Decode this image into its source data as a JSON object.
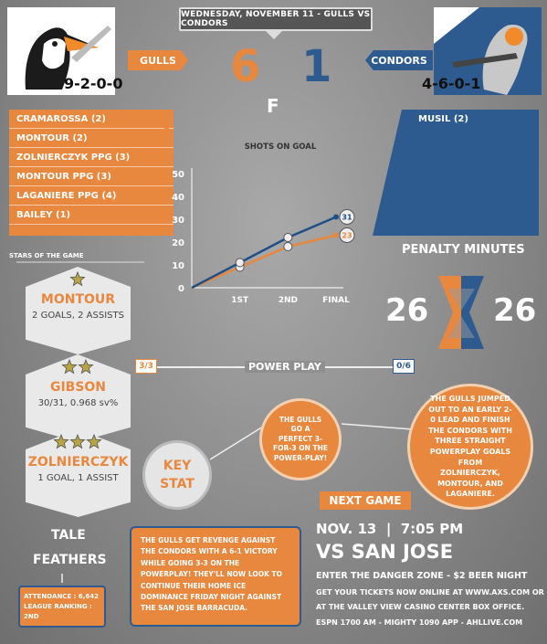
{
  "header": {
    "title": "WEDNESDAY, NOVEMBER 11 - GULLS VS CONDORS"
  },
  "gulls": {
    "name": "GULLS",
    "record": "9-2-0-0",
    "score": "6",
    "color": "#e8873e"
  },
  "condors": {
    "name": "CONDORS",
    "record": "4-6-0-1",
    "score": "1",
    "color": "#2e5b8f"
  },
  "status": "F",
  "gulls_goals": [
    "CRAMAROSSA (2)",
    "MONTOUR (2)",
    "ZOLNIERCZYK PPG (3)",
    "MONTOUR PPG (3)",
    "LAGANIERE PPG (4)",
    "BAILEY (1)"
  ],
  "condors_goals": [
    "MUSIL (2)"
  ],
  "stars": {
    "label": "STARS OF THE GAME",
    "items": [
      {
        "name": "MONTOUR",
        "stat": "2 GOALS, 2 ASSISTS",
        "stars": 1
      },
      {
        "name": "GIBSON",
        "stat": "30/31, 0.968 sv%",
        "stars": 2
      },
      {
        "name": "ZOLNIERCZYK",
        "stat": "1 GOAL, 1 ASSIST",
        "stars": 3
      }
    ]
  },
  "penalty": {
    "title": "PENALTY MINUTES",
    "gulls": "26",
    "condors": "26"
  },
  "power_play": {
    "label": "POWER PLAY",
    "gulls": "3/3",
    "condors": "0/6"
  },
  "key_stat": {
    "label_1": "KEY",
    "label_2": "STAT",
    "text": "THE GULLS GO A PERFECT 3-FOR-3 ON THE POWER-PLAY!"
  },
  "bubble_right": {
    "text": "THE GULLS JUMPED OUT TO AN EARLY 2-0 LEAD AND FINISH THE CONDORS WITH THREE STRAIGHT POWERPLAY GOALS FROM ZOLNIERCZYK, MONTOUR, AND LAGANIERE."
  },
  "tale": {
    "title_1": "TALE",
    "title_2": "FEATHERS",
    "attendance": "ATTENDANCE : 6,642",
    "ranking": "LEAGUE RANKING : 2ND"
  },
  "recap": {
    "text": "THE GULLS GET REVENGE AGAINST THE CONDORS WITH A 6-1 VICTORY WHILE GOING 3-3 ON THE POWERPLAY! THEY'LL NOW LOOK TO CONTINUE THEIR HOME ICE DOMINANCE FRIDAY NIGHT AGAINST THE SAN JOSE BARRACUDA."
  },
  "next_game": {
    "label": "NEXT GAME",
    "date_time": "NOV. 13  |  7:05 PM",
    "opponent": "VS SAN JOSE",
    "promo": "ENTER THE DANGER ZONE - $2 BEER NIGHT",
    "tickets_1": "GET YOUR TICKETS NOW ONLINE AT WWW.AXS.COM OR",
    "tickets_2": "AT THE VALLEY VIEW CASINO CENTER BOX OFFICE.",
    "radio": "ESPN 1700 AM - MIGHTY 1090 APP - AHLLIVE.COM"
  },
  "chart_data": {
    "type": "line",
    "title": "SHOTS ON GOAL",
    "categories": [
      "",
      "1ST",
      "2ND",
      "FINAL"
    ],
    "y_ticks": [
      0,
      10,
      20,
      30,
      40,
      50
    ],
    "ylim": [
      0,
      50
    ],
    "series": [
      {
        "values": [
          0,
          9,
          18,
          23
        ],
        "color": "#e8873e",
        "end_label": "23"
      },
      {
        "values": [
          0,
          11,
          22,
          31
        ],
        "color": "#1f4f86",
        "end_label": "31"
      }
    ],
    "grid": false
  }
}
